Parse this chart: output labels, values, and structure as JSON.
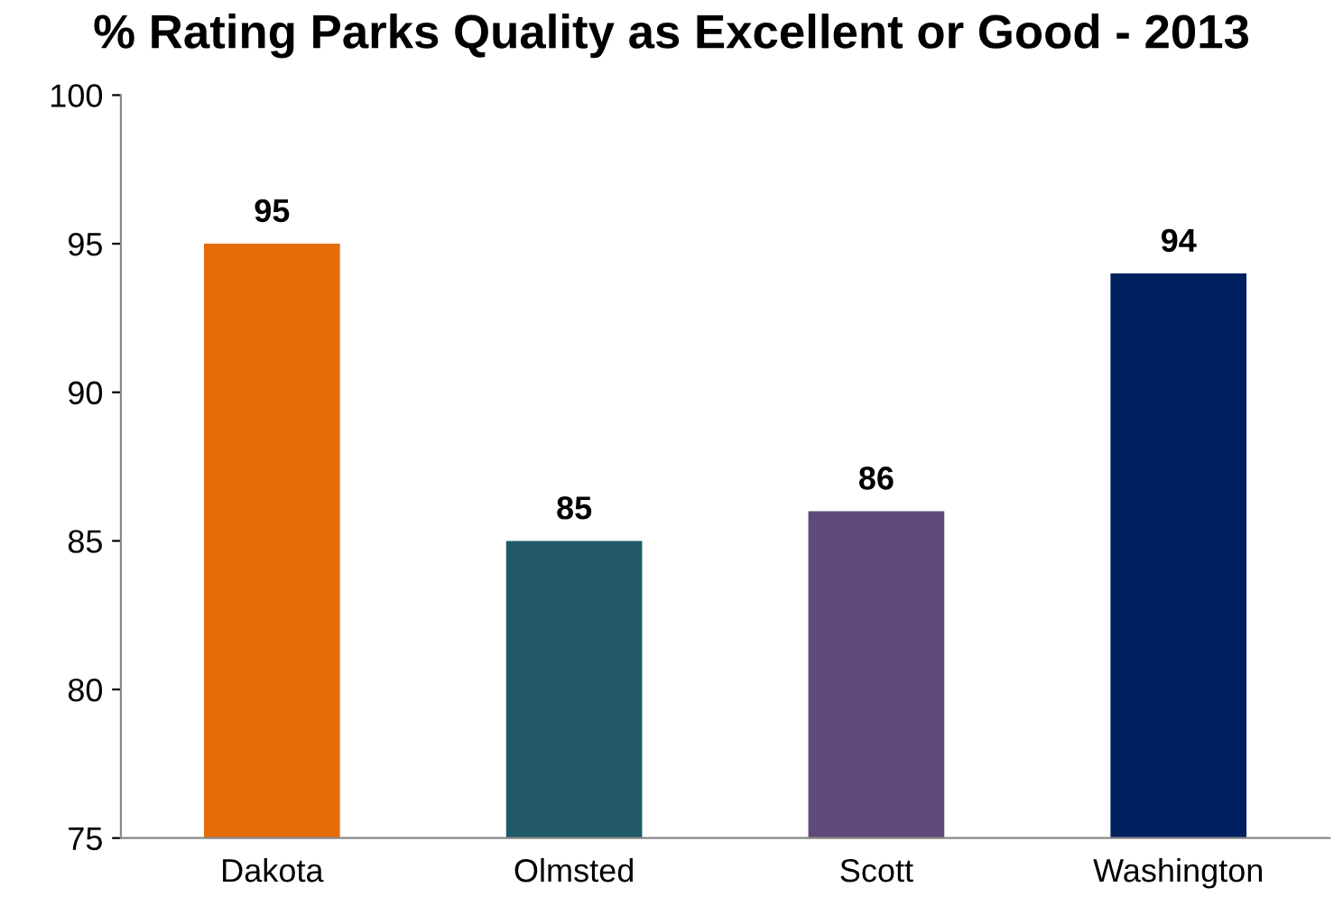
{
  "chart_data": {
    "type": "bar",
    "title": "% Rating Parks Quality as Excellent or Good - 2013",
    "categories": [
      "Dakota",
      "Olmsted",
      "Scott",
      "Washington"
    ],
    "values": [
      95,
      85,
      86,
      94
    ],
    "colors": [
      "#e36c09",
      "#215968",
      "#604a7b",
      "#002060"
    ],
    "ylim": [
      75,
      100
    ],
    "yticks": [
      75,
      80,
      85,
      90,
      95,
      100
    ],
    "data_labels": true,
    "grid": false
  }
}
